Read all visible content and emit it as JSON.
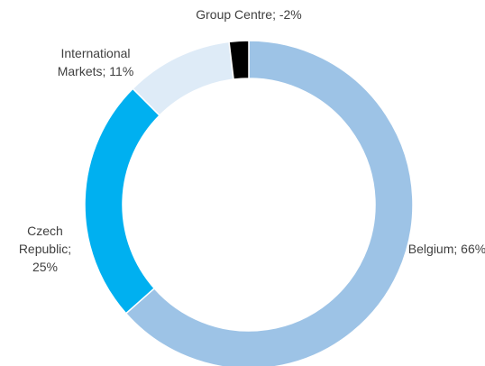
{
  "chart_data": {
    "type": "donut",
    "values": [
      66,
      25,
      11,
      -2
    ],
    "value_labels": [
      "Belgium; 66%",
      "Czech Republic; 25%",
      "International Markets; 11%",
      "Group Centre; -2%"
    ],
    "colors": [
      "#9dc3e6",
      "#00b0f0",
      "#deebf7",
      "#000000"
    ]
  }
}
